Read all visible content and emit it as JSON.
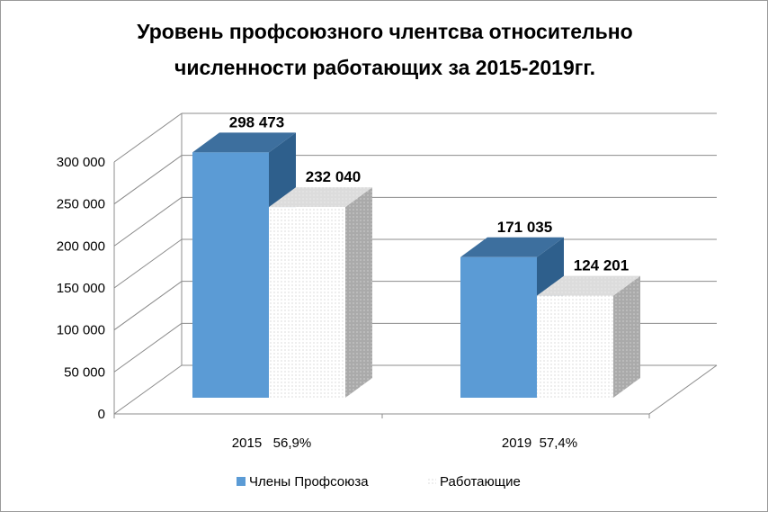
{
  "title_lines": [
    "Уровень профсоюзного члентсва относительно",
    "численности работающих за 2015-2019гг."
  ],
  "chart_data": {
    "type": "bar",
    "style": "3d-clustered-column",
    "categories": [
      "2015   56,9%",
      "2019  57,4%"
    ],
    "series": [
      {
        "name": "Члены Профсоюза",
        "values": [
          298473,
          171035
        ],
        "labels": [
          "298 473",
          "171 035"
        ],
        "color": "#5b9bd5",
        "fill": "solid"
      },
      {
        "name": "Работающие",
        "values": [
          232040,
          124201
        ],
        "labels": [
          "232 040",
          "124 201"
        ],
        "color": "#ffffff",
        "fill": "dotted"
      }
    ],
    "y_ticks": [
      0,
      50000,
      100000,
      150000,
      200000,
      250000,
      300000
    ],
    "y_tick_labels": [
      "0",
      "50 000",
      "100 000",
      "150 000",
      "200 000",
      "250 000",
      "300 000"
    ],
    "ylim": [
      0,
      300000
    ],
    "grid": true,
    "legend_position": "bottom"
  }
}
